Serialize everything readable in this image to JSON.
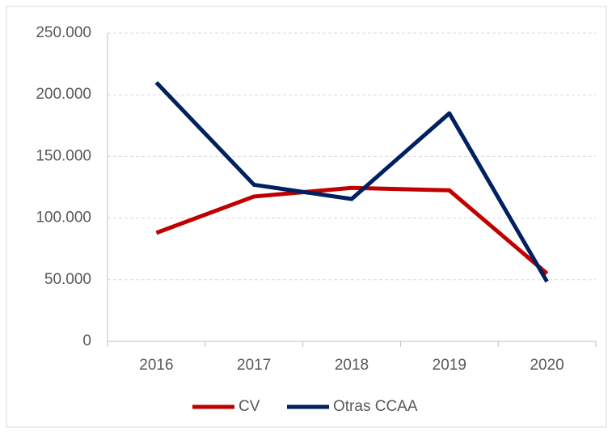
{
  "chart_data": {
    "type": "line",
    "categories": [
      "2016",
      "2017",
      "2018",
      "2019",
      "2020"
    ],
    "series": [
      {
        "name": "CV",
        "color": "#c00000",
        "values": [
          88000,
          117500,
          124500,
          122500,
          55000
        ]
      },
      {
        "name": "Otras CCAA",
        "color": "#002060",
        "values": [
          210000,
          127000,
          115500,
          185000,
          48500
        ]
      }
    ],
    "ylim": [
      0,
      250000
    ],
    "yticks": [
      0,
      {
        "value": 50000,
        "label": "50.000"
      },
      {
        "value": 100000,
        "label": "100.000"
      },
      {
        "value": 150000,
        "label": "150.000"
      },
      {
        "value": 200000,
        "label": "200.000"
      },
      {
        "value": 250000,
        "label": "250.000"
      }
    ],
    "grid": true,
    "legend": "bottom"
  }
}
